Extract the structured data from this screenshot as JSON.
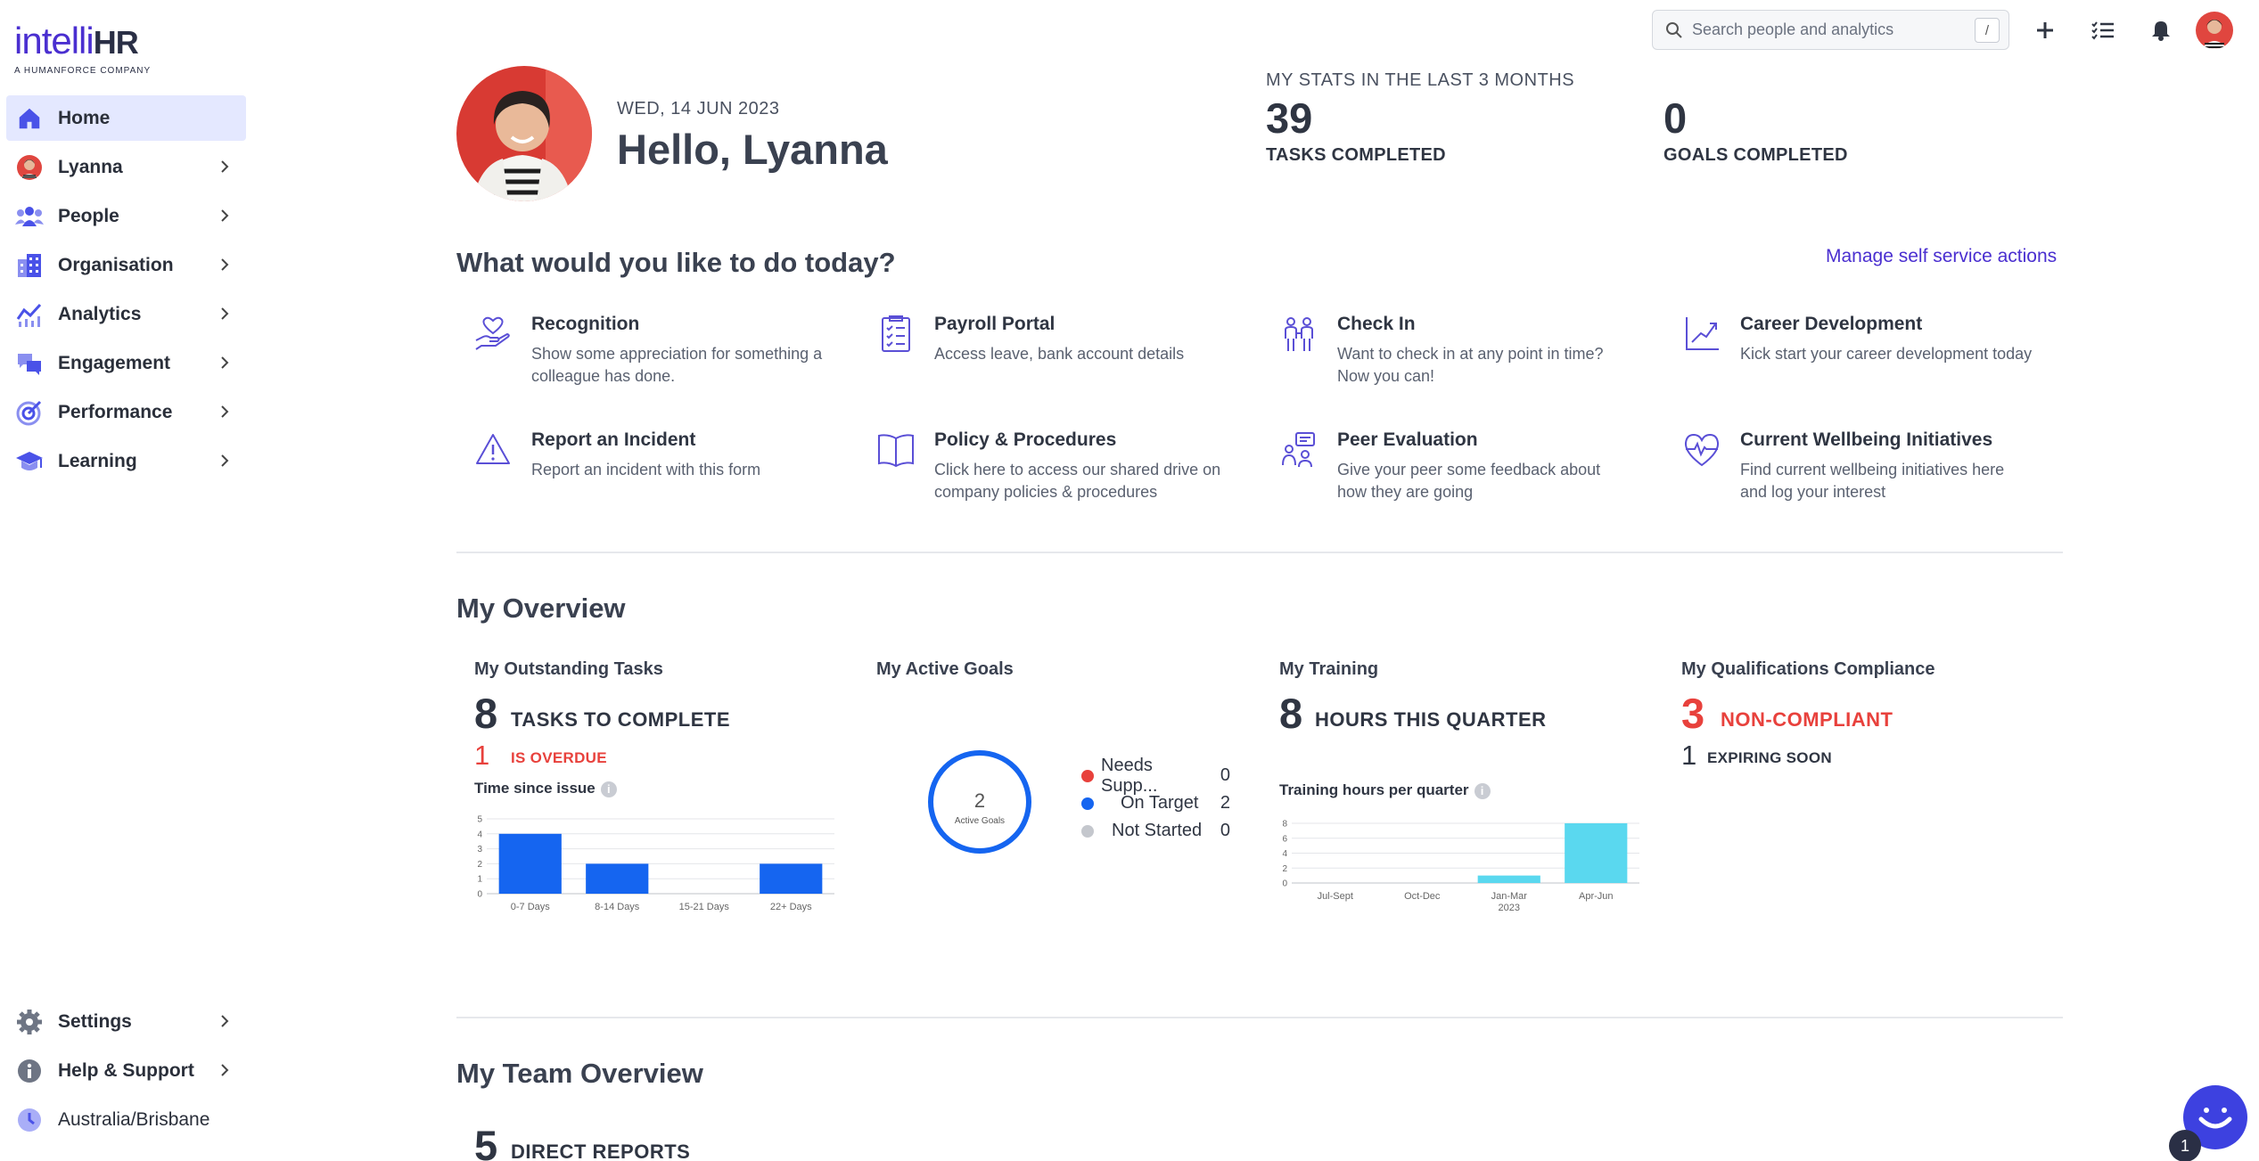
{
  "brand": {
    "logo_main": "intelli",
    "logo_hr": "HR",
    "logo_sub": "A HUMANFORCE COMPANY"
  },
  "sidebar": {
    "items": [
      {
        "label": "Home",
        "icon": "home-icon",
        "active": true
      },
      {
        "label": "Lyanna",
        "icon": "user-avatar-icon"
      },
      {
        "label": "People",
        "icon": "people-icon"
      },
      {
        "label": "Organisation",
        "icon": "organisation-icon"
      },
      {
        "label": "Analytics",
        "icon": "analytics-icon"
      },
      {
        "label": "Engagement",
        "icon": "engagement-icon"
      },
      {
        "label": "Performance",
        "icon": "performance-icon"
      },
      {
        "label": "Learning",
        "icon": "learning-icon"
      }
    ],
    "bottom": [
      {
        "label": "Settings",
        "icon": "gear-icon"
      },
      {
        "label": "Help & Support",
        "icon": "info-icon"
      },
      {
        "label": "Australia/Brisbane",
        "icon": "clock-icon"
      }
    ]
  },
  "topbar": {
    "search_placeholder": "Search people and analytics",
    "shortcut": "/"
  },
  "header": {
    "date": "WED, 14 JUN 2023",
    "greeting": "Hello, Lyanna",
    "stats_title": "MY STATS IN THE LAST 3 MONTHS",
    "stats": [
      {
        "value": "39",
        "label": "TASKS COMPLETED"
      },
      {
        "value": "0",
        "label": "GOALS COMPLETED"
      }
    ]
  },
  "actions": {
    "heading": "What would you like to do today?",
    "manage_link": "Manage self service actions",
    "items": [
      {
        "title": "Recognition",
        "desc": "Show some appreciation for something a colleague has done.",
        "icon": "recognition-icon"
      },
      {
        "title": "Payroll Portal",
        "desc": "Access leave, bank account details",
        "icon": "checklist-icon"
      },
      {
        "title": "Check In",
        "desc": "Want to check in at any point in time? Now you can!",
        "icon": "check-in-icon"
      },
      {
        "title": "Career Development",
        "desc": "Kick start your career development today",
        "icon": "career-growth-icon"
      },
      {
        "title": "Report an Incident",
        "desc": "Report an incident with this form",
        "icon": "warning-icon"
      },
      {
        "title": "Policy & Procedures",
        "desc": "Click here to access our shared drive on company policies & procedures",
        "icon": "book-icon"
      },
      {
        "title": "Peer Evaluation",
        "desc": "Give your peer some feedback about how they are going",
        "icon": "peer-evaluation-icon"
      },
      {
        "title": "Current Wellbeing Initiatives",
        "desc": "Find current wellbeing initiatives here and log your interest",
        "icon": "heartbeat-icon"
      }
    ]
  },
  "overview": {
    "heading": "My Overview",
    "tasks": {
      "title": "My Outstanding Tasks",
      "count": "8",
      "count_label": "TASKS TO COMPLETE",
      "overdue": "1",
      "overdue_label": "IS OVERDUE",
      "chart_title": "Time since issue"
    },
    "goals": {
      "title": "My Active Goals",
      "total": "2",
      "total_label": "Active Goals",
      "legend": [
        {
          "name": "Needs Supp...",
          "value": "0",
          "color": "#e8413c"
        },
        {
          "name": "On Target",
          "value": "2",
          "color": "#1565f0"
        },
        {
          "name": "Not Started",
          "value": "0",
          "color": "#c4c7cd"
        }
      ]
    },
    "training": {
      "title": "My Training",
      "count": "8",
      "count_label": "HOURS THIS QUARTER",
      "chart_title": "Training hours per quarter"
    },
    "qualifications": {
      "title": "My Qualifications Compliance",
      "noncompliant": "3",
      "noncompliant_label": "NON-COMPLIANT",
      "expiring": "1",
      "expiring_label": "EXPIRING SOON"
    }
  },
  "team": {
    "heading": "My Team Overview",
    "direct_reports": "5",
    "direct_reports_label": "DIRECT REPORTS"
  },
  "chat": {
    "badge": "1"
  },
  "chart_data": [
    {
      "type": "bar",
      "title": "Time since issue",
      "categories": [
        "0-7 Days",
        "8-14 Days",
        "15-21 Days",
        "22+ Days"
      ],
      "values": [
        4,
        2,
        0,
        2
      ],
      "yticks": [
        0,
        1,
        2,
        3,
        4,
        5
      ],
      "ylim": [
        0,
        5
      ],
      "color": "#1565f0"
    },
    {
      "type": "bar",
      "title": "Training hours per quarter",
      "categories": [
        "Jul-Sept",
        "Oct-Dec",
        "Jan-Mar 2023",
        "Apr-Jun"
      ],
      "values": [
        0,
        0,
        1,
        8
      ],
      "yticks": [
        0,
        2,
        4,
        6,
        8
      ],
      "ylim": [
        0,
        8
      ],
      "color": "#5ad8ef"
    }
  ]
}
